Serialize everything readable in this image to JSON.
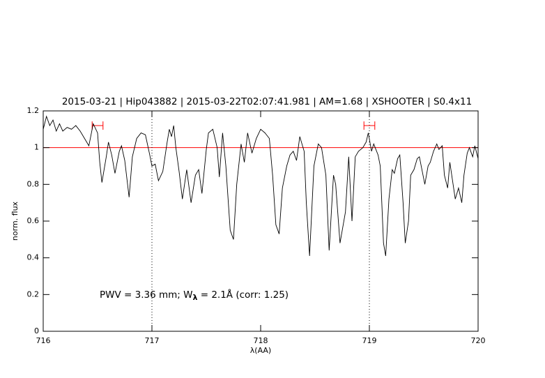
{
  "chart_data": {
    "type": "line",
    "title": "2015-03-21 | Hip043882 | 2015-03-22T02:07:41.981 | AM=1.68 | XSHOOTER | S0.4x11",
    "xlabel": "λ(AA)",
    "ylabel": "norm. flux",
    "annotation": {
      "parts": [
        "PWV = 3.36 mm; W",
        "λ",
        " = 2.1Å (corr: 1.25)"
      ],
      "color": "#0000ff"
    },
    "title_color": "#0000ff",
    "color": "#000000",
    "xlim": [
      716,
      720
    ],
    "xticks": [
      716,
      717,
      718,
      719,
      720
    ],
    "ylim": [
      0,
      1.2
    ],
    "yticks": [
      0,
      0.2,
      0.4,
      0.6,
      0.8,
      1,
      1.2
    ],
    "hline": 1,
    "hline_color": "#ff0000",
    "vlines": [
      717,
      719
    ],
    "bands": [
      [
        716.45,
        716.55
      ],
      [
        718.95,
        719.05
      ]
    ],
    "band_y": 1.12,
    "band_color": "#ff0000",
    "x": [
      716.0,
      716.03,
      716.06,
      716.09,
      716.12,
      716.15,
      716.18,
      716.22,
      716.26,
      716.3,
      716.34,
      716.38,
      716.42,
      716.46,
      716.5,
      716.52,
      716.54,
      716.58,
      716.6,
      716.63,
      716.66,
      716.7,
      716.72,
      716.75,
      716.79,
      716.82,
      716.86,
      716.9,
      716.94,
      716.98,
      717.0,
      717.03,
      717.06,
      717.1,
      717.14,
      717.16,
      717.18,
      717.2,
      717.22,
      717.25,
      717.28,
      717.32,
      717.36,
      717.4,
      717.43,
      717.46,
      717.5,
      717.52,
      717.56,
      717.6,
      717.62,
      717.65,
      717.68,
      717.72,
      717.75,
      717.78,
      717.82,
      717.85,
      717.88,
      717.92,
      717.96,
      718.0,
      718.04,
      718.08,
      718.11,
      718.14,
      718.17,
      718.2,
      718.24,
      718.27,
      718.3,
      718.33,
      718.36,
      718.4,
      718.42,
      718.45,
      718.49,
      718.53,
      718.56,
      718.6,
      718.63,
      718.67,
      718.69,
      718.73,
      718.78,
      718.81,
      718.84,
      718.87,
      718.9,
      718.94,
      718.97,
      718.99,
      719.02,
      719.04,
      719.08,
      719.1,
      719.13,
      719.15,
      719.18,
      719.21,
      719.23,
      719.26,
      719.28,
      719.31,
      719.33,
      719.36,
      719.38,
      719.41,
      719.44,
      719.46,
      719.49,
      719.51,
      719.54,
      719.56,
      719.59,
      719.62,
      719.64,
      719.67,
      719.69,
      719.72,
      719.74,
      719.77,
      719.79,
      719.82,
      719.85,
      719.87,
      719.9,
      719.92,
      719.95,
      719.97,
      720.0
    ],
    "values": [
      1.1,
      1.17,
      1.12,
      1.15,
      1.09,
      1.13,
      1.09,
      1.11,
      1.1,
      1.12,
      1.09,
      1.05,
      1.01,
      1.13,
      1.08,
      0.92,
      0.81,
      0.95,
      1.03,
      0.96,
      0.86,
      0.98,
      1.01,
      0.93,
      0.73,
      0.95,
      1.05,
      1.08,
      1.07,
      0.96,
      0.9,
      0.91,
      0.82,
      0.87,
      1.03,
      1.1,
      1.06,
      1.12,
      1.0,
      0.87,
      0.72,
      0.88,
      0.7,
      0.85,
      0.88,
      0.75,
      0.99,
      1.08,
      1.1,
      1.0,
      0.84,
      1.08,
      0.9,
      0.55,
      0.5,
      0.8,
      1.02,
      0.92,
      1.08,
      0.97,
      1.05,
      1.1,
      1.08,
      1.05,
      0.85,
      0.58,
      0.53,
      0.78,
      0.9,
      0.96,
      0.98,
      0.93,
      1.06,
      0.98,
      0.7,
      0.41,
      0.9,
      1.02,
      1.0,
      0.85,
      0.44,
      0.85,
      0.8,
      0.48,
      0.65,
      0.95,
      0.6,
      0.95,
      0.98,
      1.0,
      1.03,
      1.08,
      0.98,
      1.02,
      0.96,
      0.9,
      0.48,
      0.41,
      0.72,
      0.88,
      0.86,
      0.94,
      0.96,
      0.7,
      0.48,
      0.6,
      0.85,
      0.88,
      0.94,
      0.95,
      0.86,
      0.8,
      0.9,
      0.92,
      0.98,
      1.02,
      0.99,
      1.01,
      0.85,
      0.78,
      0.92,
      0.8,
      0.72,
      0.78,
      0.7,
      0.85,
      0.97,
      1.0,
      0.95,
      1.01,
      0.94
    ]
  }
}
